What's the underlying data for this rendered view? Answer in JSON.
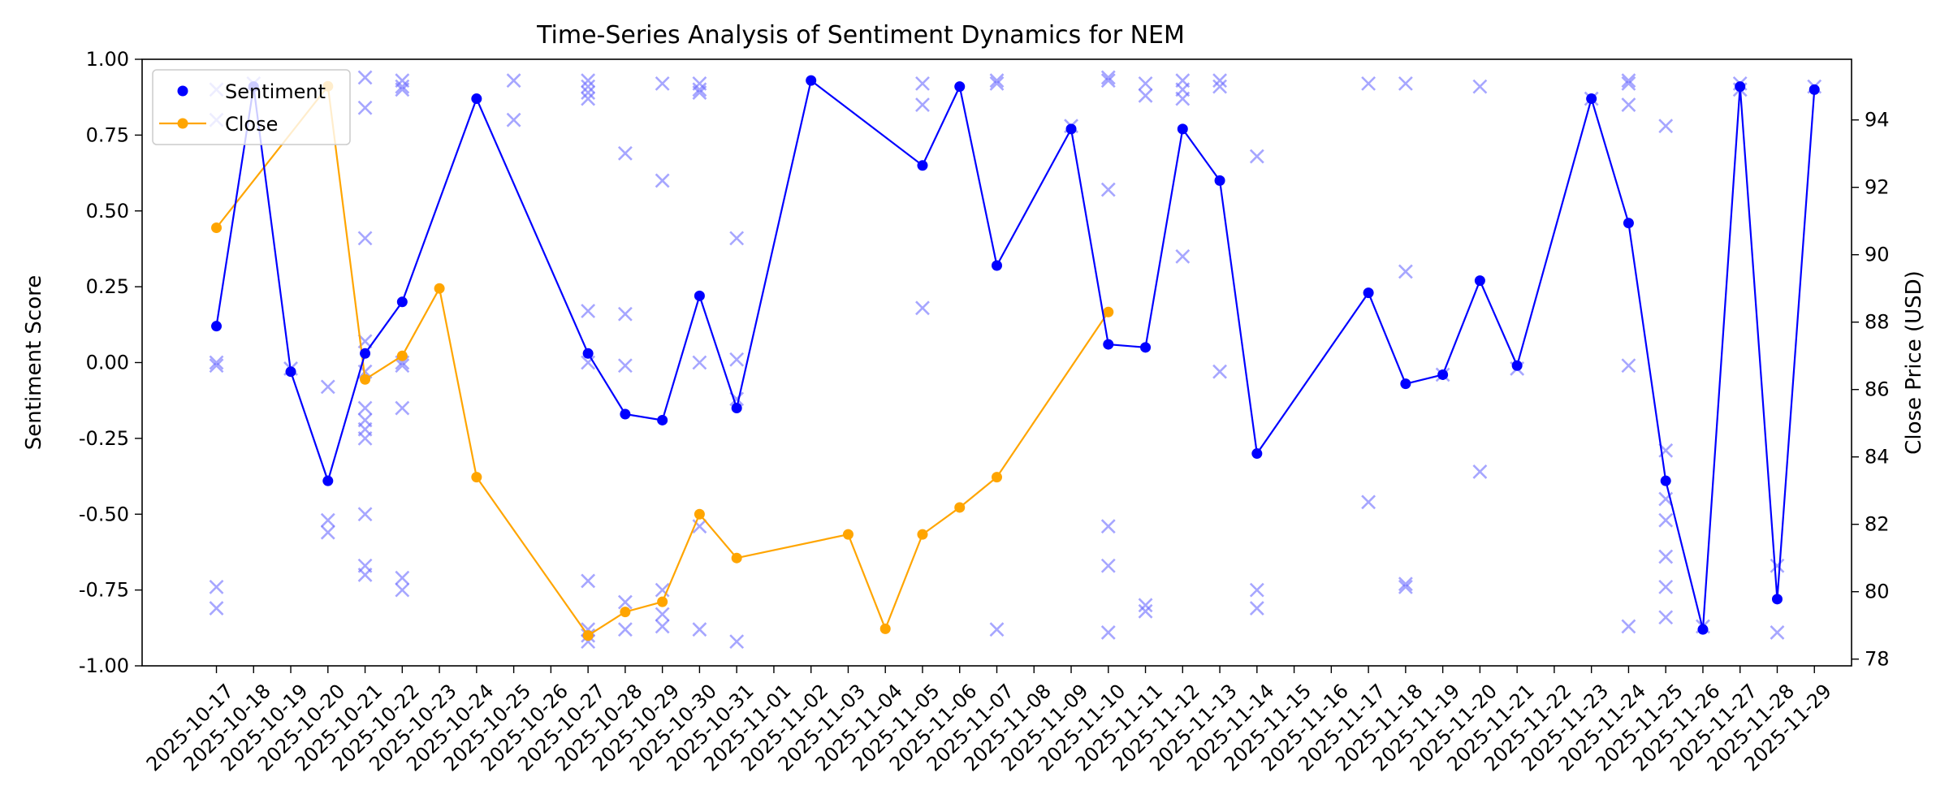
{
  "chart_data": {
    "type": "line",
    "title": "Time-Series Analysis of Sentiment Dynamics for NEM",
    "ylabel": "Sentiment Score",
    "ylabel_right": "Close Price (USD)",
    "ylim": [
      -1.0,
      1.0
    ],
    "ylim_right": [
      77.8,
      95.8
    ],
    "yticks": [
      -1.0,
      -0.75,
      -0.5,
      -0.25,
      0.0,
      0.25,
      0.5,
      0.75,
      1.0
    ],
    "yticks_right": [
      78,
      80,
      82,
      84,
      86,
      88,
      90,
      92,
      94
    ],
    "grid": false,
    "legend_position": "top-left",
    "x_dates": [
      "2025-10-17",
      "2025-10-18",
      "2025-10-19",
      "2025-10-20",
      "2025-10-21",
      "2025-10-22",
      "2025-10-23",
      "2025-10-24",
      "2025-10-25",
      "2025-10-26",
      "2025-10-27",
      "2025-10-28",
      "2025-10-29",
      "2025-10-30",
      "2025-10-31",
      "2025-11-01",
      "2025-11-02",
      "2025-11-03",
      "2025-11-04",
      "2025-11-05",
      "2025-11-06",
      "2025-11-07",
      "2025-11-08",
      "2025-11-09",
      "2025-11-10",
      "2025-11-11",
      "2025-11-12",
      "2025-11-13",
      "2025-11-14",
      "2025-11-15",
      "2025-11-16",
      "2025-11-17",
      "2025-11-18",
      "2025-11-19",
      "2025-11-20",
      "2025-11-21",
      "2025-11-22",
      "2025-11-23",
      "2025-11-24",
      "2025-11-25",
      "2025-11-26",
      "2025-11-27",
      "2025-11-28",
      "2025-11-29"
    ],
    "x_range": [
      "2025-10-15",
      "2025-11-30"
    ],
    "series": [
      {
        "name": "Sentiment",
        "axis": "left",
        "color": "#0000ff",
        "marker": "circle",
        "points": [
          [
            "2025-10-17",
            0.12
          ],
          [
            "2025-10-18",
            0.91
          ],
          [
            "2025-10-19",
            -0.03
          ],
          [
            "2025-10-20",
            -0.39
          ],
          [
            "2025-10-21",
            0.03
          ],
          [
            "2025-10-22",
            0.2
          ],
          [
            "2025-10-24",
            0.87
          ],
          [
            "2025-10-27",
            0.03
          ],
          [
            "2025-10-28",
            -0.17
          ],
          [
            "2025-10-29",
            -0.19
          ],
          [
            "2025-10-30",
            0.22
          ],
          [
            "2025-10-31",
            -0.15
          ],
          [
            "2025-11-02",
            0.93
          ],
          [
            "2025-11-05",
            0.65
          ],
          [
            "2025-11-06",
            0.91
          ],
          [
            "2025-11-07",
            0.32
          ],
          [
            "2025-11-09",
            0.77
          ],
          [
            "2025-11-10",
            0.06
          ],
          [
            "2025-11-11",
            0.05
          ],
          [
            "2025-11-12",
            0.77
          ],
          [
            "2025-11-13",
            0.6
          ],
          [
            "2025-11-14",
            -0.3
          ],
          [
            "2025-11-17",
            0.23
          ],
          [
            "2025-11-18",
            -0.07
          ],
          [
            "2025-11-19",
            -0.04
          ],
          [
            "2025-11-20",
            0.27
          ],
          [
            "2025-11-21",
            -0.01
          ],
          [
            "2025-11-23",
            0.87
          ],
          [
            "2025-11-24",
            0.46
          ],
          [
            "2025-11-25",
            -0.39
          ],
          [
            "2025-11-26",
            -0.88
          ],
          [
            "2025-11-27",
            0.91
          ],
          [
            "2025-11-28",
            -0.78
          ],
          [
            "2025-11-29",
            0.9
          ]
        ]
      },
      {
        "name": "Close",
        "axis": "right",
        "color": "#ffa500",
        "marker": "circle",
        "points": [
          [
            "2025-10-17",
            90.8
          ],
          [
            "2025-10-20",
            95.0
          ],
          [
            "2025-10-21",
            86.3
          ],
          [
            "2025-10-22",
            87.0
          ],
          [
            "2025-10-23",
            89.0
          ],
          [
            "2025-10-24",
            83.4
          ],
          [
            "2025-10-27",
            78.7
          ],
          [
            "2025-10-28",
            79.4
          ],
          [
            "2025-10-29",
            79.7
          ],
          [
            "2025-10-30",
            82.3
          ],
          [
            "2025-10-31",
            81.0
          ],
          [
            "2025-11-03",
            81.7
          ],
          [
            "2025-11-04",
            78.9
          ],
          [
            "2025-11-05",
            81.7
          ],
          [
            "2025-11-06",
            82.5
          ],
          [
            "2025-11-07",
            83.4
          ],
          [
            "2025-11-10",
            88.3
          ]
        ]
      },
      {
        "name": "",
        "axis": "left",
        "color": "#6b6bff",
        "marker": "x",
        "points": [
          [
            "2025-10-17",
            0.9
          ],
          [
            "2025-10-17",
            0.8
          ],
          [
            "2025-10-17",
            0.0
          ],
          [
            "2025-10-17",
            -0.01
          ],
          [
            "2025-10-17",
            -0.74
          ],
          [
            "2025-10-17",
            -0.81
          ],
          [
            "2025-10-18",
            0.92
          ],
          [
            "2025-10-19",
            -0.02
          ],
          [
            "2025-10-20",
            -0.08
          ],
          [
            "2025-10-20",
            -0.52
          ],
          [
            "2025-10-20",
            -0.56
          ],
          [
            "2025-10-21",
            0.94
          ],
          [
            "2025-10-21",
            0.84
          ],
          [
            "2025-10-21",
            0.41
          ],
          [
            "2025-10-21",
            0.07
          ],
          [
            "2025-10-21",
            -0.03
          ],
          [
            "2025-10-21",
            -0.15
          ],
          [
            "2025-10-21",
            -0.19
          ],
          [
            "2025-10-21",
            -0.22
          ],
          [
            "2025-10-21",
            -0.25
          ],
          [
            "2025-10-21",
            -0.5
          ],
          [
            "2025-10-21",
            -0.67
          ],
          [
            "2025-10-21",
            -0.7
          ],
          [
            "2025-10-22",
            0.93
          ],
          [
            "2025-10-22",
            0.91
          ],
          [
            "2025-10-22",
            0.9
          ],
          [
            "2025-10-22",
            0.0
          ],
          [
            "2025-10-22",
            -0.01
          ],
          [
            "2025-10-22",
            -0.15
          ],
          [
            "2025-10-22",
            -0.71
          ],
          [
            "2025-10-22",
            -0.75
          ],
          [
            "2025-10-25",
            0.93
          ],
          [
            "2025-10-25",
            0.8
          ],
          [
            "2025-10-27",
            0.93
          ],
          [
            "2025-10-27",
            0.91
          ],
          [
            "2025-10-27",
            0.89
          ],
          [
            "2025-10-27",
            0.87
          ],
          [
            "2025-10-27",
            0.17
          ],
          [
            "2025-10-27",
            0.0
          ],
          [
            "2025-10-27",
            -0.72
          ],
          [
            "2025-10-27",
            -0.88
          ],
          [
            "2025-10-27",
            -0.9
          ],
          [
            "2025-10-27",
            -0.92
          ],
          [
            "2025-10-28",
            0.69
          ],
          [
            "2025-10-28",
            0.16
          ],
          [
            "2025-10-28",
            -0.01
          ],
          [
            "2025-10-28",
            -0.79
          ],
          [
            "2025-10-28",
            -0.88
          ],
          [
            "2025-10-29",
            0.92
          ],
          [
            "2025-10-29",
            0.6
          ],
          [
            "2025-10-29",
            -0.75
          ],
          [
            "2025-10-29",
            -0.83
          ],
          [
            "2025-10-29",
            -0.87
          ],
          [
            "2025-10-30",
            0.92
          ],
          [
            "2025-10-30",
            0.9
          ],
          [
            "2025-10-30",
            0.89
          ],
          [
            "2025-10-30",
            0.0
          ],
          [
            "2025-10-30",
            -0.54
          ],
          [
            "2025-10-30",
            -0.88
          ],
          [
            "2025-10-31",
            0.41
          ],
          [
            "2025-10-31",
            0.01
          ],
          [
            "2025-10-31",
            -0.12
          ],
          [
            "2025-10-31",
            -0.92
          ],
          [
            "2025-11-05",
            0.92
          ],
          [
            "2025-11-05",
            0.85
          ],
          [
            "2025-11-05",
            0.18
          ],
          [
            "2025-11-07",
            0.93
          ],
          [
            "2025-11-07",
            0.92
          ],
          [
            "2025-11-07",
            -0.88
          ],
          [
            "2025-11-09",
            0.78
          ],
          [
            "2025-11-10",
            0.94
          ],
          [
            "2025-11-10",
            0.93
          ],
          [
            "2025-11-10",
            0.57
          ],
          [
            "2025-11-10",
            -0.54
          ],
          [
            "2025-11-10",
            -0.67
          ],
          [
            "2025-11-10",
            -0.89
          ],
          [
            "2025-11-11",
            0.92
          ],
          [
            "2025-11-11",
            0.88
          ],
          [
            "2025-11-11",
            -0.8
          ],
          [
            "2025-11-11",
            -0.82
          ],
          [
            "2025-11-12",
            0.93
          ],
          [
            "2025-11-12",
            0.9
          ],
          [
            "2025-11-12",
            0.87
          ],
          [
            "2025-11-12",
            0.35
          ],
          [
            "2025-11-13",
            0.93
          ],
          [
            "2025-11-13",
            0.91
          ],
          [
            "2025-11-13",
            -0.03
          ],
          [
            "2025-11-14",
            0.68
          ],
          [
            "2025-11-14",
            -0.75
          ],
          [
            "2025-11-14",
            -0.81
          ],
          [
            "2025-11-17",
            0.92
          ],
          [
            "2025-11-17",
            -0.46
          ],
          [
            "2025-11-18",
            0.92
          ],
          [
            "2025-11-18",
            0.3
          ],
          [
            "2025-11-18",
            -0.73
          ],
          [
            "2025-11-18",
            -0.74
          ],
          [
            "2025-11-19",
            -0.04
          ],
          [
            "2025-11-20",
            0.91
          ],
          [
            "2025-11-20",
            -0.36
          ],
          [
            "2025-11-21",
            -0.02
          ],
          [
            "2025-11-23",
            0.87
          ],
          [
            "2025-11-24",
            0.93
          ],
          [
            "2025-11-24",
            0.92
          ],
          [
            "2025-11-24",
            0.85
          ],
          [
            "2025-11-24",
            -0.01
          ],
          [
            "2025-11-24",
            -0.87
          ],
          [
            "2025-11-25",
            0.78
          ],
          [
            "2025-11-25",
            -0.29
          ],
          [
            "2025-11-25",
            -0.45
          ],
          [
            "2025-11-25",
            -0.52
          ],
          [
            "2025-11-25",
            -0.64
          ],
          [
            "2025-11-25",
            -0.74
          ],
          [
            "2025-11-25",
            -0.84
          ],
          [
            "2025-11-26",
            -0.87
          ],
          [
            "2025-11-27",
            0.92
          ],
          [
            "2025-11-27",
            0.9
          ],
          [
            "2025-11-28",
            -0.67
          ],
          [
            "2025-11-28",
            -0.89
          ],
          [
            "2025-11-29",
            0.91
          ]
        ]
      }
    ]
  }
}
